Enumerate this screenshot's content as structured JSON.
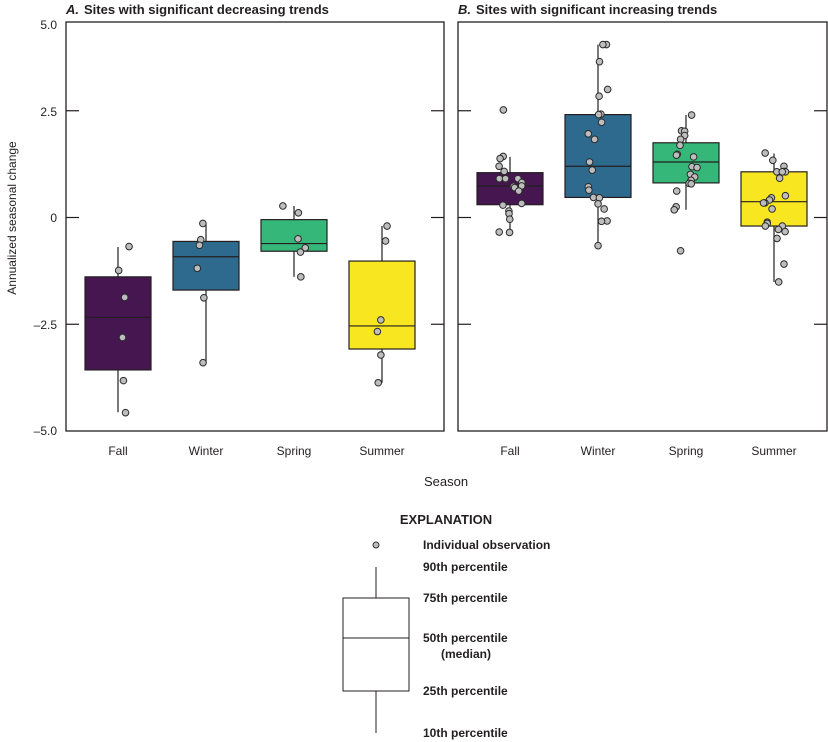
{
  "chart_data": [
    {
      "type": "box",
      "panel_letter": "A.",
      "title": "Sites with significant decreasing trends",
      "xlabel": "Season",
      "ylabel": "Annualized seasonal change",
      "ylim": [
        -5.0,
        5.0
      ],
      "yticks": [
        5.0,
        2.5,
        0,
        -2.5,
        -5.0
      ],
      "ytick_labels": [
        "5.0",
        "2.5",
        "0",
        "–2.5",
        "–5.0"
      ],
      "categories": [
        "Fall",
        "Winter",
        "Spring",
        "Summer"
      ],
      "colors": [
        "#45164f",
        "#2e6a8d",
        "#35b779",
        "#f8e621"
      ],
      "boxes": [
        {
          "p10": -4.56,
          "p25": -3.57,
          "median": -2.34,
          "p75": -1.39,
          "p90": -0.69
        },
        {
          "p10": -3.4,
          "p25": -1.7,
          "median": -0.92,
          "p75": -0.56,
          "p90": -0.14
        },
        {
          "p10": -1.39,
          "p25": -0.79,
          "median": -0.61,
          "p75": -0.05,
          "p90": 0.27
        },
        {
          "p10": -3.87,
          "p25": -3.08,
          "median": -2.54,
          "p75": -1.02,
          "p90": -0.2
        }
      ],
      "observations": [
        [
          -0.68,
          -1.24,
          -1.87,
          -2.81,
          -3.82,
          -4.57
        ],
        [
          -0.14,
          -0.52,
          -0.65,
          -1.19,
          -1.88,
          -3.4
        ],
        [
          0.27,
          0.11,
          -0.5,
          -0.71,
          -0.81,
          -1.39
        ],
        [
          -0.2,
          -0.55,
          -2.4,
          -2.67,
          -3.22,
          -3.87
        ]
      ]
    },
    {
      "type": "box",
      "panel_letter": "B.",
      "title": "Sites with significant increasing trends",
      "ylim": [
        -5.0,
        5.0
      ],
      "categories": [
        "Fall",
        "Winter",
        "Spring",
        "Summer"
      ],
      "colors": [
        "#45164f",
        "#2e6a8d",
        "#35b779",
        "#f8e621"
      ],
      "boxes": [
        {
          "p10": -0.34,
          "p25": 0.3,
          "median": 0.74,
          "p75": 1.05,
          "p90": 1.42
        },
        {
          "p10": -0.66,
          "p25": 0.47,
          "median": 1.2,
          "p75": 2.41,
          "p90": 4.05
        },
        {
          "p10": 0.18,
          "p25": 0.81,
          "median": 1.3,
          "p75": 1.75,
          "p90": 2.4
        },
        {
          "p10": -1.51,
          "p25": -0.2,
          "median": 0.37,
          "p75": 1.07,
          "p90": 1.5
        }
      ],
      "observations": [
        [
          2.52,
          1.43,
          1.38,
          1.2,
          1.08,
          0.91,
          0.91,
          0.91,
          0.82,
          0.73,
          0.74,
          0.7,
          0.62,
          0.33,
          0.29,
          0.15,
          0.09,
          -0.04,
          -0.34,
          -0.35
        ],
        [
          4.05,
          4.05,
          3.65,
          3.0,
          2.84,
          2.42,
          2.41,
          2.23,
          1.96,
          1.83,
          1.3,
          1.11,
          0.72,
          0.64,
          0.47,
          0.46,
          0.32,
          0.2,
          -0.08,
          -0.09,
          -0.66
        ],
        [
          2.4,
          2.03,
          2.02,
          1.92,
          1.83,
          1.69,
          1.48,
          1.46,
          1.42,
          1.19,
          1.17,
          1.01,
          0.95,
          0.87,
          0.8,
          0.79,
          0.62,
          0.25,
          0.18,
          -0.78
        ],
        [
          1.51,
          1.34,
          1.2,
          1.08,
          1.07,
          1.07,
          1.07,
          0.92,
          0.51,
          0.46,
          0.41,
          0.34,
          0.34,
          0.2,
          -0.11,
          -0.14,
          -0.2,
          -0.2,
          -0.28,
          -0.33,
          -0.49,
          -1.09,
          -1.51
        ]
      ]
    }
  ],
  "legend": {
    "title": "EXPLANATION",
    "observation": "Individual observation",
    "p90": "90th percentile",
    "p75": "75th percentile",
    "p50": "50th percentile",
    "p50_note": "(median)",
    "p25": "25th percentile",
    "p10": "10th percentile"
  }
}
